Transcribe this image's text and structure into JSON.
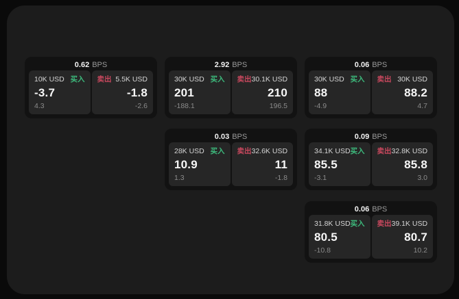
{
  "colors": {
    "buy_green": "#3dba7c",
    "sell_red": "#c9485e",
    "surface": "#1c1c1c",
    "card": "#121212",
    "panel": "#262626",
    "page_background": "#0a0a0a"
  },
  "labels": {
    "bps_unit": "BPS",
    "buy": "买入",
    "sell": "卖出"
  },
  "cards": [
    {
      "bps_value": "0.62",
      "buy": {
        "size": "10K USD",
        "value": "-3.7",
        "delta": "4.3"
      },
      "sell": {
        "size": "5.5K USD",
        "value": "-1.8",
        "delta": "-2.6"
      }
    },
    {
      "bps_value": "2.92",
      "buy": {
        "size": "30K USD",
        "value": "201",
        "delta": "-188.1"
      },
      "sell": {
        "size": "30.1K USD",
        "value": "210",
        "delta": "196.5"
      }
    },
    {
      "bps_value": "0.06",
      "buy": {
        "size": "30K USD",
        "value": "88",
        "delta": "-4.9"
      },
      "sell": {
        "size": "30K USD",
        "value": "88.2",
        "delta": "4.7"
      }
    },
    {
      "bps_value": "0.03",
      "buy": {
        "size": "28K USD",
        "value": "10.9",
        "delta": "1.3"
      },
      "sell": {
        "size": "32.6K USD",
        "value": "11",
        "delta": "-1.8"
      }
    },
    {
      "bps_value": "0.09",
      "buy": {
        "size": "34.1K USD",
        "value": "85.5",
        "delta": "-3.1"
      },
      "sell": {
        "size": "32.8K USD",
        "value": "85.8",
        "delta": "3.0"
      }
    },
    {
      "bps_value": "0.06",
      "buy": {
        "size": "31.8K USD",
        "value": "80.5",
        "delta": "-10.8"
      },
      "sell": {
        "size": "39.1K USD",
        "value": "80.7",
        "delta": "10.2"
      }
    }
  ]
}
